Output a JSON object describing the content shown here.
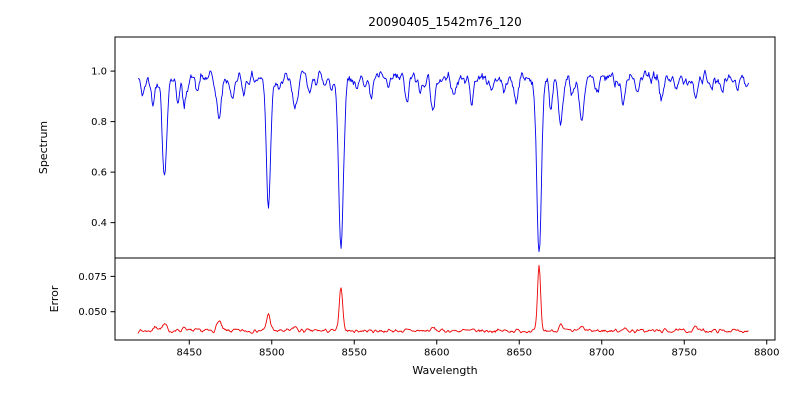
{
  "chart_data": {
    "type": "line",
    "title": "20090405_1542m76_120",
    "xlabel": "Wavelength",
    "x_range": [
      8405,
      8805
    ],
    "x_data_range": [
      8419,
      8789
    ],
    "x_step": 0.5,
    "x_ticks": [
      8450,
      8500,
      8550,
      8600,
      8650,
      8700,
      8750,
      8800
    ],
    "grid": false,
    "legend": "none",
    "panels": [
      {
        "name": "spectrum",
        "ylabel": "Spectrum",
        "ylim": [
          0.26,
          1.135
        ],
        "ytick_values": [
          1.0,
          0.8,
          0.6,
          0.4
        ],
        "ytick_labels": [
          "1.0",
          "0.8",
          "0.6",
          "0.4"
        ],
        "color": "#0000ee",
        "continuum": 0.972,
        "noise_amp": 0.08,
        "seed": 42,
        "absorption_lines": [
          {
            "center": 8422,
            "depth": 0.06,
            "width": 2.0
          },
          {
            "center": 8428,
            "depth": 0.1,
            "width": 1.5
          },
          {
            "center": 8435,
            "depth": 0.4,
            "width": 1.8
          },
          {
            "center": 8443,
            "depth": 0.08,
            "width": 1.5
          },
          {
            "center": 8447,
            "depth": 0.12,
            "width": 1.5
          },
          {
            "center": 8455,
            "depth": 0.05,
            "width": 1.5
          },
          {
            "center": 8468,
            "depth": 0.16,
            "width": 2.0
          },
          {
            "center": 8476,
            "depth": 0.09,
            "width": 1.5
          },
          {
            "center": 8483,
            "depth": 0.05,
            "width": 1.5
          },
          {
            "center": 8498,
            "depth": 0.5,
            "width": 1.8
          },
          {
            "center": 8505,
            "depth": 0.05,
            "width": 1.5
          },
          {
            "center": 8514,
            "depth": 0.14,
            "width": 1.8
          },
          {
            "center": 8523,
            "depth": 0.07,
            "width": 1.5
          },
          {
            "center": 8536,
            "depth": 0.05,
            "width": 1.5
          },
          {
            "center": 8542,
            "depth": 0.67,
            "width": 2.0
          },
          {
            "center": 8552,
            "depth": 0.05,
            "width": 1.5
          },
          {
            "center": 8560,
            "depth": 0.07,
            "width": 1.5
          },
          {
            "center": 8571,
            "depth": 0.05,
            "width": 1.5
          },
          {
            "center": 8582,
            "depth": 0.1,
            "width": 1.5
          },
          {
            "center": 8590,
            "depth": 0.06,
            "width": 1.5
          },
          {
            "center": 8598,
            "depth": 0.13,
            "width": 1.8
          },
          {
            "center": 8611,
            "depth": 0.07,
            "width": 1.5
          },
          {
            "center": 8621,
            "depth": 0.1,
            "width": 1.5
          },
          {
            "center": 8633,
            "depth": 0.05,
            "width": 1.5
          },
          {
            "center": 8641,
            "depth": 0.06,
            "width": 1.5
          },
          {
            "center": 8648,
            "depth": 0.09,
            "width": 1.5
          },
          {
            "center": 8662,
            "depth": 0.7,
            "width": 2.0
          },
          {
            "center": 8669,
            "depth": 0.12,
            "width": 1.5
          },
          {
            "center": 8675,
            "depth": 0.22,
            "width": 1.8
          },
          {
            "center": 8682,
            "depth": 0.08,
            "width": 1.5
          },
          {
            "center": 8688,
            "depth": 0.18,
            "width": 1.8
          },
          {
            "center": 8697,
            "depth": 0.06,
            "width": 1.5
          },
          {
            "center": 8713,
            "depth": 0.1,
            "width": 1.5
          },
          {
            "center": 8722,
            "depth": 0.06,
            "width": 1.5
          },
          {
            "center": 8736,
            "depth": 0.09,
            "width": 1.5
          },
          {
            "center": 8745,
            "depth": 0.06,
            "width": 1.5
          },
          {
            "center": 8757,
            "depth": 0.07,
            "width": 1.5
          },
          {
            "center": 8766,
            "depth": 0.05,
            "width": 1.5
          },
          {
            "center": 8773,
            "depth": 0.07,
            "width": 1.5
          },
          {
            "center": 8782,
            "depth": 0.05,
            "width": 1.5
          }
        ]
      },
      {
        "name": "error",
        "ylabel": "Error",
        "ylim": [
          0.03,
          0.088
        ],
        "ytick_values": [
          0.05,
          0.075
        ],
        "ytick_labels": [
          "0.050",
          "0.075"
        ],
        "color": "#ee0000",
        "baseline": 0.0365,
        "noise_amp": 0.004,
        "seed": 7,
        "peaks": [
          {
            "center": 8430,
            "height": 0.003,
            "width": 2.0
          },
          {
            "center": 8435,
            "height": 0.004,
            "width": 2.0
          },
          {
            "center": 8447,
            "height": 0.003,
            "width": 1.5
          },
          {
            "center": 8468,
            "height": 0.007,
            "width": 1.8
          },
          {
            "center": 8498,
            "height": 0.012,
            "width": 1.6
          },
          {
            "center": 8514,
            "height": 0.003,
            "width": 1.5
          },
          {
            "center": 8542,
            "height": 0.03,
            "width": 1.5
          },
          {
            "center": 8598,
            "height": 0.002,
            "width": 1.5
          },
          {
            "center": 8662,
            "height": 0.045,
            "width": 1.3
          },
          {
            "center": 8675,
            "height": 0.004,
            "width": 1.5
          },
          {
            "center": 8688,
            "height": 0.003,
            "width": 1.5
          },
          {
            "center": 8713,
            "height": 0.002,
            "width": 1.5
          },
          {
            "center": 8757,
            "height": 0.003,
            "width": 1.5
          }
        ]
      }
    ]
  }
}
